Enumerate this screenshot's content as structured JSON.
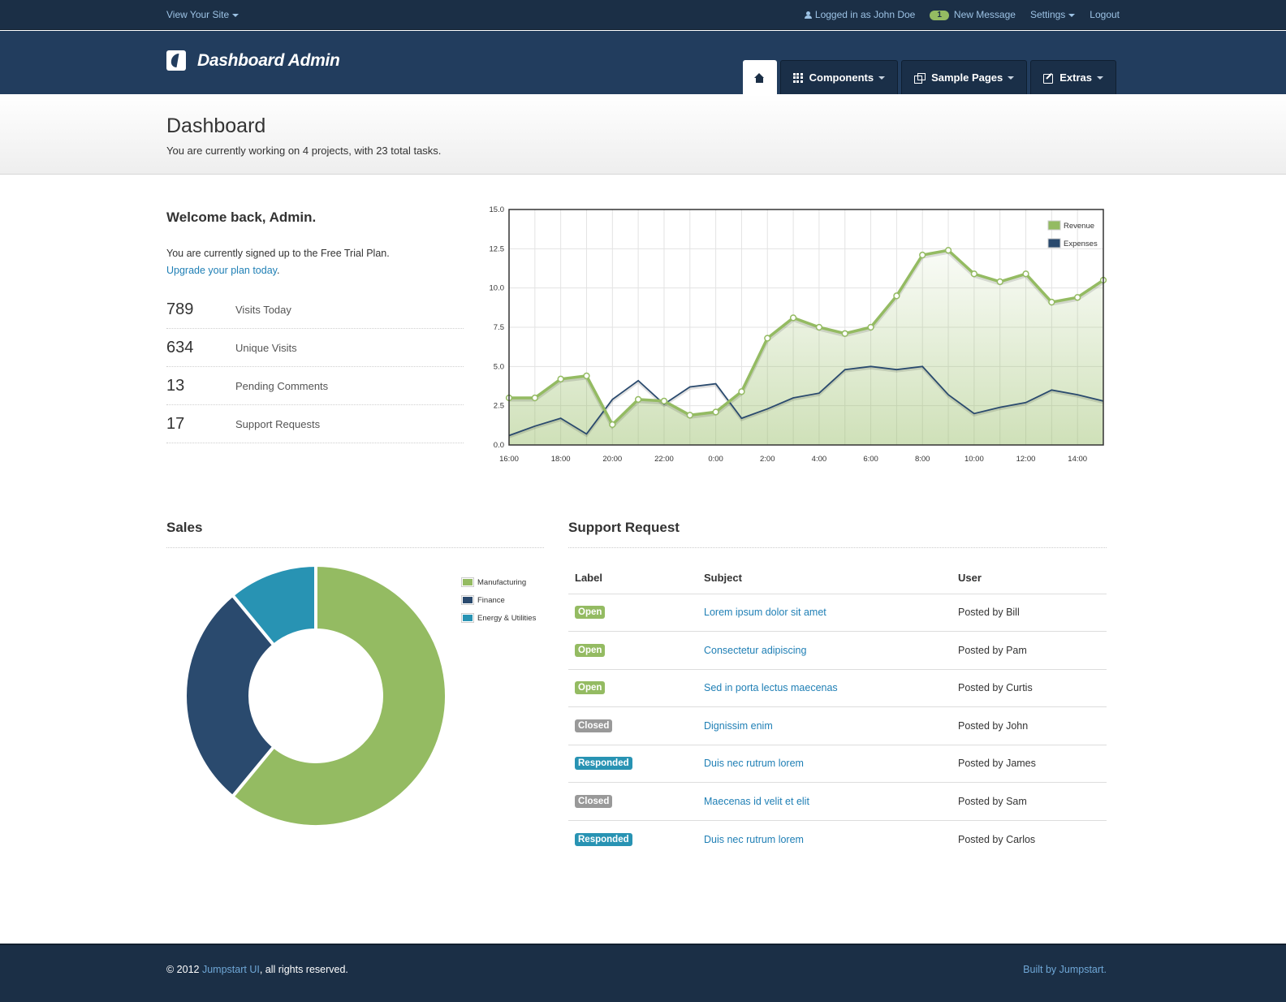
{
  "topbar": {
    "view_site": "View Your Site",
    "logged_in": "Logged in as John Doe",
    "message_count": "1",
    "new_message": "New Message",
    "settings": "Settings",
    "logout": "Logout"
  },
  "header": {
    "title": "Dashboard Admin",
    "nav": {
      "components": "Components",
      "sample_pages": "Sample Pages",
      "extras": "Extras"
    }
  },
  "page": {
    "title": "Dashboard",
    "subtitle": "You are currently working on 4 projects, with 23 total tasks."
  },
  "welcome": {
    "heading": "Welcome back, Admin.",
    "plan_text": "You are currently signed up to the Free Trial Plan.",
    "upgrade_link": "Upgrade your plan today",
    "upgrade_suffix": ".",
    "stats": [
      {
        "value": "789",
        "label": "Visits Today"
      },
      {
        "value": "634",
        "label": "Unique Visits"
      },
      {
        "value": "13",
        "label": "Pending Comments"
      },
      {
        "value": "17",
        "label": "Support Requests"
      }
    ]
  },
  "colors": {
    "revenue": "#94bb62",
    "expenses": "#2a4a6e",
    "energy": "#2893b3"
  },
  "chart_data": [
    {
      "type": "line",
      "ylim": [
        0,
        15
      ],
      "yticks": [
        "0.0",
        "2.5",
        "5.0",
        "7.5",
        "10.0",
        "12.5",
        "15.0"
      ],
      "xtick_labels": [
        "16:00",
        "18:00",
        "20:00",
        "22:00",
        "0:00",
        "2:00",
        "4:00",
        "6:00",
        "8:00",
        "10:00",
        "12:00",
        "14:00"
      ],
      "x_hours": [
        16,
        17,
        18,
        19,
        20,
        21,
        22,
        23,
        24,
        25,
        26,
        27,
        28,
        29,
        30,
        31,
        32,
        33,
        34,
        35,
        36,
        37,
        38,
        39
      ],
      "grid": true,
      "legend_position": "top-right",
      "series": [
        {
          "name": "Revenue",
          "values": [
            3.0,
            3.0,
            4.2,
            4.4,
            1.3,
            2.9,
            2.8,
            1.9,
            2.1,
            3.4,
            6.8,
            8.1,
            7.5,
            7.1,
            7.5,
            9.5,
            12.1,
            12.4,
            10.9,
            10.4,
            10.9,
            9.1,
            9.4,
            10.5
          ]
        },
        {
          "name": "Expenses",
          "values": [
            0.6,
            1.2,
            1.7,
            0.7,
            2.9,
            4.1,
            2.6,
            3.7,
            3.9,
            1.7,
            2.3,
            3.0,
            3.3,
            4.8,
            5.0,
            4.8,
            5.0,
            3.2,
            2.0,
            2.4,
            2.7,
            3.5,
            3.2,
            2.8
          ]
        }
      ]
    },
    {
      "type": "pie",
      "title": "Sales",
      "series": [
        {
          "name": "Manufacturing",
          "value": 61
        },
        {
          "name": "Finance",
          "value": 28
        },
        {
          "name": "Energy & Utilities",
          "value": 11
        }
      ]
    }
  ],
  "support": {
    "title": "Support Request",
    "columns": [
      "Label",
      "Subject",
      "User"
    ],
    "rows": [
      {
        "label": "Open",
        "status": "open",
        "subject": "Lorem ipsum dolor sit amet",
        "user": "Posted by Bill"
      },
      {
        "label": "Open",
        "status": "open",
        "subject": "Consectetur adipiscing",
        "user": "Posted by Pam"
      },
      {
        "label": "Open",
        "status": "open",
        "subject": "Sed in porta lectus maecenas",
        "user": "Posted by Curtis"
      },
      {
        "label": "Closed",
        "status": "closed",
        "subject": "Dignissim enim",
        "user": "Posted by John"
      },
      {
        "label": "Responded",
        "status": "responded",
        "subject": "Duis nec rutrum lorem",
        "user": "Posted by James"
      },
      {
        "label": "Closed",
        "status": "closed",
        "subject": "Maecenas id velit et elit",
        "user": "Posted by Sam"
      },
      {
        "label": "Responded",
        "status": "responded",
        "subject": "Duis nec rutrum lorem",
        "user": "Posted by Carlos"
      }
    ]
  },
  "footer": {
    "copyright_prefix": "© 2012 ",
    "brand_link": "Jumpstart UI",
    "copyright_suffix": ", all rights reserved.",
    "built_by": "Built by Jumpstart."
  }
}
